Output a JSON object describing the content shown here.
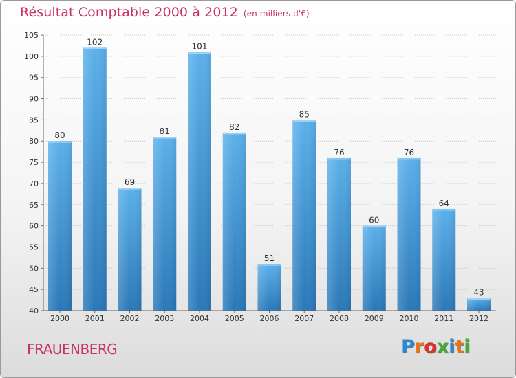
{
  "header": {
    "title": "Résultat Comptable 2000 à 2012",
    "unit": "(en milliers d'€)"
  },
  "footer": {
    "commune": "FRAUENBERG",
    "brand": "Proxiti"
  },
  "colors": {
    "title": "#c8306a",
    "bar_top": "#5cb0ea",
    "bar_bottom": "#2a78b8",
    "logo_letters": [
      "#2a8ad0",
      "#e8741a",
      "#d8322b",
      "#48a83a",
      "#2a8ad0",
      "#e8741a",
      "#48a83a"
    ]
  },
  "chart_data": {
    "type": "bar",
    "title": "Résultat Comptable 2000 à 2012",
    "subtitle": "(en milliers d'€)",
    "xlabel": "",
    "ylabel": "",
    "categories": [
      "2000",
      "2001",
      "2002",
      "2003",
      "2004",
      "2005",
      "2006",
      "2007",
      "2008",
      "2009",
      "2010",
      "2011",
      "2012"
    ],
    "values": [
      80,
      102,
      69,
      81,
      101,
      82,
      51,
      85,
      76,
      60,
      76,
      64,
      43
    ],
    "ylim": [
      40,
      105
    ],
    "yticks": [
      40,
      45,
      50,
      55,
      60,
      65,
      70,
      75,
      80,
      85,
      90,
      95,
      100,
      105
    ],
    "grid": true
  }
}
